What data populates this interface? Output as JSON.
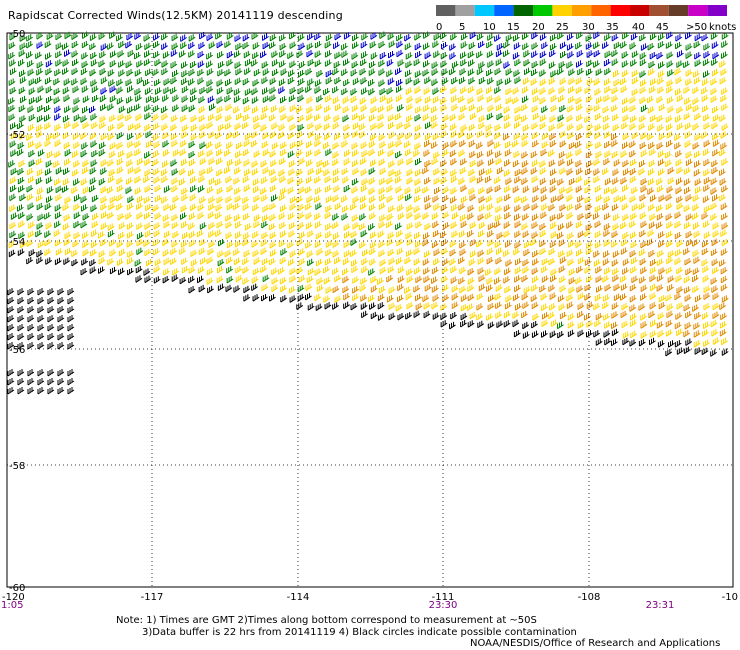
{
  "title": "Rapidscat Corrected Winds(12.5KM) 20141119 descending",
  "legend": {
    "unit_label": "knots",
    "labels": [
      "0",
      "5",
      "10",
      "15",
      "20",
      "25",
      "30",
      "35",
      "40",
      "45",
      ">50"
    ],
    "colors": [
      "#606060",
      "#a0a0a0",
      "#00c8ff",
      "#0064ff",
      "#006400",
      "#00c800",
      "#ffd200",
      "#ffa000",
      "#ff6400",
      "#ff0000",
      "#c80000",
      "#a05030",
      "#643c28",
      "#c800c8",
      "#8200c8"
    ]
  },
  "map": {
    "lat_labels": [
      "-50",
      "-52",
      "-54",
      "-56",
      "-58",
      "-60"
    ],
    "lon_labels": [
      "-120",
      "-117",
      "-114",
      "-111",
      "-108",
      "-10"
    ],
    "time_labels": [
      "1:05",
      "23:30",
      "23:31"
    ],
    "wind_colors": {
      "calm": "#000000",
      "light": "#0000cc",
      "moderate": "#008000",
      "fresh": "#ffd700",
      "strong": "#e08a00"
    }
  },
  "notes": {
    "line1": "Note: 1) Times are GMT 2)Times along bottom correspond to measurement at ~50S",
    "line2": "3)Data buffer is 22 hrs from 20141119 4) Black circles indicate possible contamination",
    "line3": "NOAA/NESDIS/Office of Research and Applications"
  }
}
